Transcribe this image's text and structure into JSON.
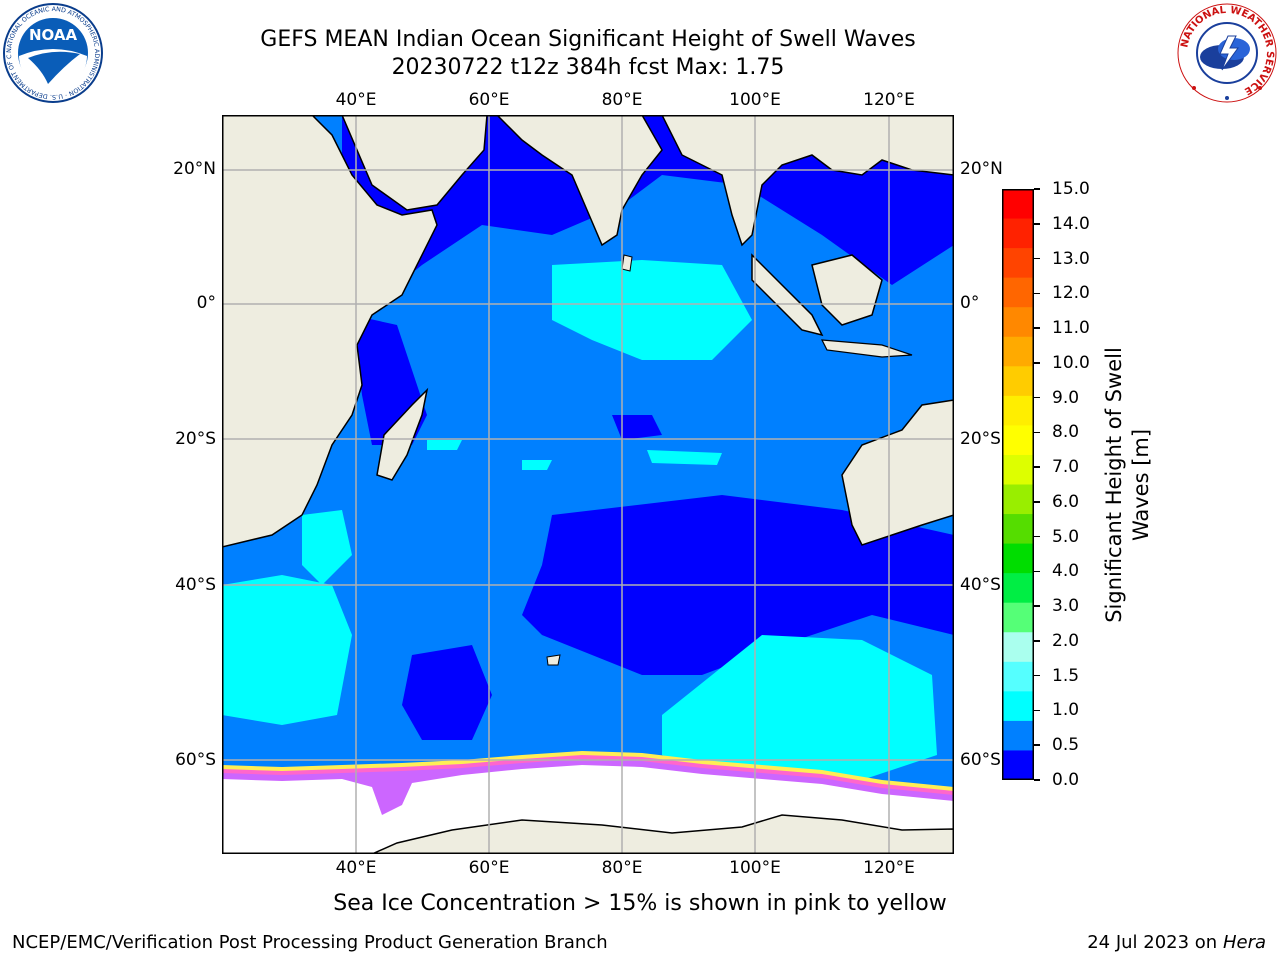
{
  "title": {
    "line1": "GEFS MEAN Indian Ocean Significant Height of Swell Waves",
    "line2": "20230722 t12z 384h fcst   Max: 1.75"
  },
  "map": {
    "lon_labels": [
      "40°E",
      "60°E",
      "80°E",
      "100°E",
      "120°E"
    ],
    "lat_labels": [
      "20°N",
      "0°",
      "20°S",
      "40°S",
      "60°S"
    ],
    "colors": {
      "land": "#eeede0",
      "sea_ice": "#ffffff",
      "grid": "#b0b0b0",
      "coast": "#000000"
    }
  },
  "colorbar": {
    "label_line1": "Significant Height of Swell",
    "label_line2": "Waves [m]",
    "ticks": [
      "15.0",
      "14.0",
      "13.0",
      "12.0",
      "11.0",
      "10.0",
      "9.0",
      "8.0",
      "7.0",
      "6.0",
      "5.0",
      "4.0",
      "3.0",
      "2.0",
      "1.5",
      "1.0",
      "0.5",
      "0.0"
    ],
    "colors_top_to_bottom": [
      "#ff0000",
      "#ff2200",
      "#ff4400",
      "#ff6600",
      "#ff8800",
      "#ffaa00",
      "#ffcc00",
      "#ffee00",
      "#ffff00",
      "#ddff00",
      "#99ee00",
      "#55dd00",
      "#00dd00",
      "#00ee44",
      "#55ff77",
      "#aaffee",
      "#55ffff",
      "#00ffff",
      "#0080ff",
      "#0000ff"
    ]
  },
  "caption": "Sea Ice Concentration > 15% is shown in pink to yellow",
  "footer": {
    "left": "NCEP/EMC/Verification Post Processing Product Generation Branch",
    "right_date": "24 Jul 2023 on ",
    "right_host": "Hera"
  },
  "logos": {
    "noaa_text": "NOAA",
    "noaa_ring": "NATIONAL OCEANIC AND ATMOSPHERIC ADMINISTRATION · U.S. DEPARTMENT OF COMMERCE",
    "nws_ring": "NATIONAL WEATHER SERVICE"
  },
  "chart_data": {
    "type": "heatmap",
    "title": "GEFS MEAN Indian Ocean Significant Height of Swell Waves",
    "subtitle": "20230722 t12z 384h fcst   Max: 1.75",
    "variable": "Significant Height of Swell Waves [m]",
    "max": 1.75,
    "xlim_lon": [
      20,
      130
    ],
    "ylim_lat": [
      -70,
      27
    ],
    "grid": true,
    "colorbar_levels": [
      0.0,
      0.5,
      1.0,
      1.5,
      2.0,
      3.0,
      4.0,
      5.0,
      6.0,
      7.0,
      8.0,
      9.0,
      10.0,
      11.0,
      12.0,
      13.0,
      14.0,
      15.0
    ]
  }
}
